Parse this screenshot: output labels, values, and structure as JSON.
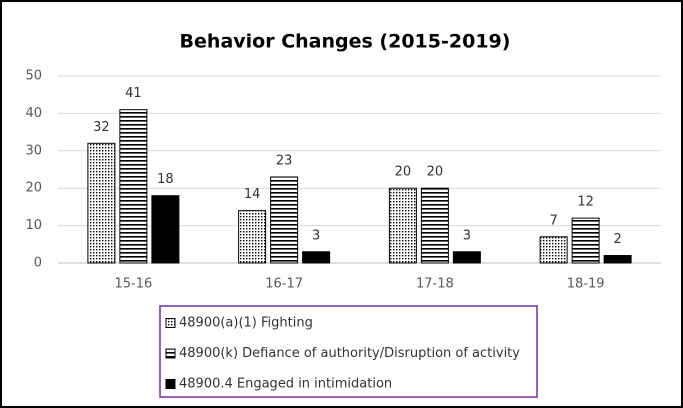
{
  "chart_data": {
    "type": "bar",
    "title": "Behavior Changes (2015-2019)",
    "categories": [
      "15-16",
      "16-17",
      "17-18",
      "18-19"
    ],
    "series": [
      {
        "name": "48900(a)(1) Fighting",
        "color": "#000000",
        "pattern": "dots",
        "values": [
          32,
          14,
          20,
          7
        ]
      },
      {
        "name": "48900(k) Defiance of authority/Disruption of activity",
        "color": "#000000",
        "pattern": "horizontal-lines",
        "values": [
          41,
          23,
          20,
          12
        ]
      },
      {
        "name": "48900.4 Engaged in intimidation",
        "color": "#000000",
        "pattern": "solid",
        "values": [
          18,
          3,
          3,
          2
        ]
      }
    ],
    "ylim": [
      0,
      50
    ],
    "yticks": [
      0,
      10,
      20,
      30,
      40,
      50
    ],
    "grid": true,
    "legend": "bottom"
  }
}
